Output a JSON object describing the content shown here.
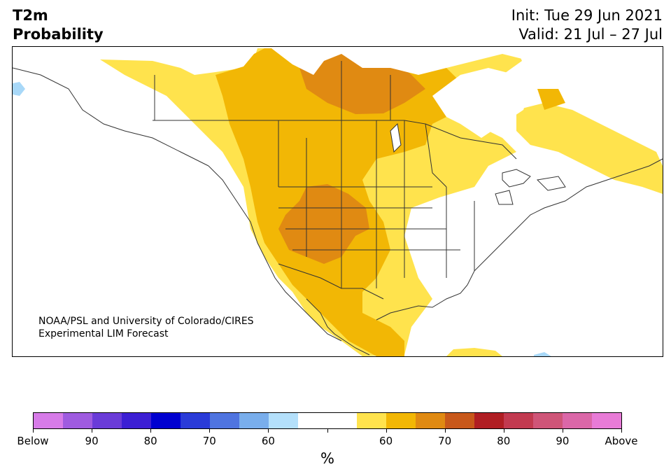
{
  "title": {
    "line1": "T2m",
    "line2": "Probability"
  },
  "init": {
    "line1": "Init: Tue 29 Jun 2021",
    "line2": "Valid: 21 Jul – 27 Jul"
  },
  "credit": {
    "line1": "NOAA/PSL and University of Colorado/CIRES",
    "line2": "Experimental LIM Forecast"
  },
  "colorbar": {
    "colors": [
      "#d77be8",
      "#9f5be0",
      "#6a3bd8",
      "#3c1fd4",
      "#0000d0",
      "#2a3bd8",
      "#4f74e0",
      "#79aeec",
      "#b4e0fb",
      "#ffffff",
      "#ffffff",
      "#ffe34d",
      "#f2b705",
      "#e08a12",
      "#c8581a",
      "#b01e23",
      "#c23a50",
      "#cf5578",
      "#db67a8",
      "#e87bd7"
    ],
    "labels": [
      "Below",
      "90",
      "80",
      "70",
      "60",
      "",
      "60",
      "70",
      "80",
      "90",
      "Above"
    ],
    "unit": "%"
  },
  "palette": {
    "yellow": "#ffe34d",
    "gold": "#f2b705",
    "orange": "#e08a12",
    "lightblue": "#a8d8f8",
    "land": "#ffffff",
    "border": "#333333"
  }
}
